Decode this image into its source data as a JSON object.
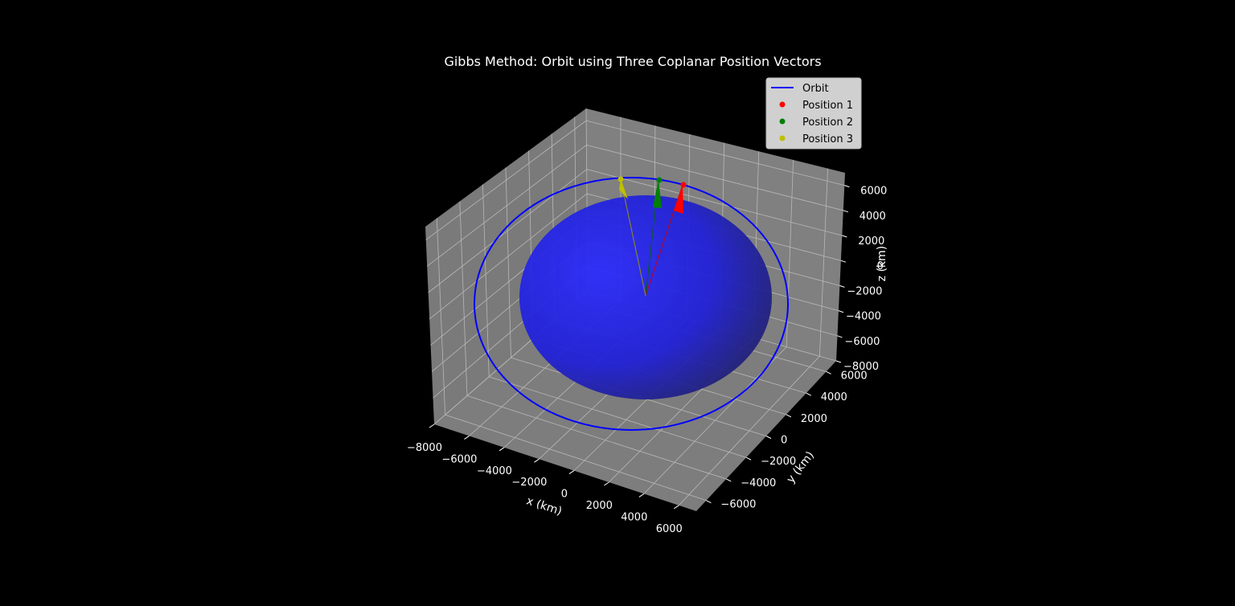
{
  "chart_data": {
    "type": "line3d",
    "title": "Gibbs Method: Orbit using Three Coplanar Position Vectors",
    "xlabel": "x (km)",
    "ylabel": "y (km)",
    "zlabel": "z (km)",
    "xlim": [
      -8000,
      7000
    ],
    "ylim": [
      -7000,
      7000
    ],
    "zlim": [
      -8000,
      7000
    ],
    "xticks": [
      -8000,
      -6000,
      -4000,
      -2000,
      0,
      2000,
      4000,
      6000
    ],
    "yticks": [
      -6000,
      -4000,
      -2000,
      0,
      2000,
      4000,
      6000
    ],
    "zticks": [
      -8000,
      -6000,
      -4000,
      -2000,
      0,
      2000,
      4000,
      6000
    ],
    "grid": true,
    "legend_position": "top-right",
    "series": [
      {
        "name": "Orbit",
        "kind": "line",
        "color": "#0000ff"
      },
      {
        "name": "Position 1",
        "kind": "point",
        "color": "#ff0000"
      },
      {
        "name": "Position 2",
        "kind": "point",
        "color": "#008000"
      },
      {
        "name": "Position 3",
        "kind": "point",
        "color": "#bfbf00"
      }
    ],
    "earth": {
      "kind": "sphere",
      "color": "#1a1aff",
      "radius_km": 6378
    }
  }
}
